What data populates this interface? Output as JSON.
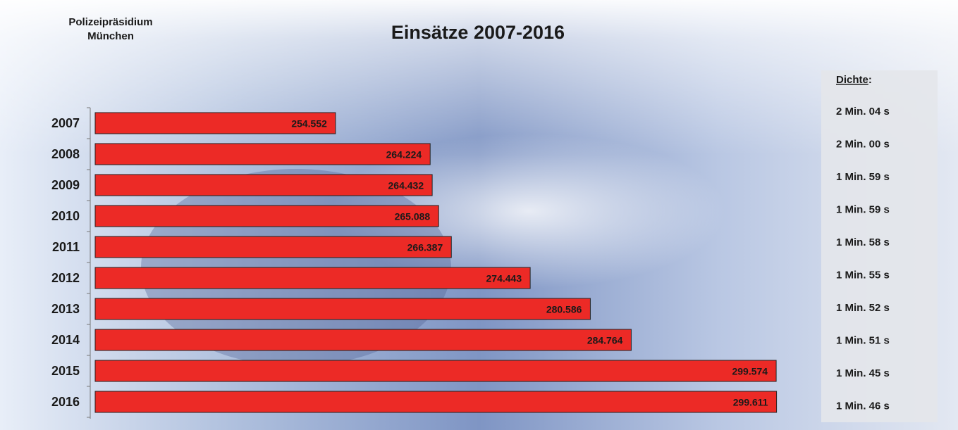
{
  "chart_data": {
    "type": "bar",
    "orientation": "horizontal",
    "title": "Einsätze 2007-2016",
    "subtitle": [
      "Polizeipräsidium",
      "München"
    ],
    "categories": [
      "2007",
      "2008",
      "2009",
      "2010",
      "2011",
      "2012",
      "2013",
      "2014",
      "2015",
      "2016"
    ],
    "values": [
      254552,
      264224,
      264432,
      265088,
      266387,
      274443,
      280586,
      284764,
      299574,
      299611
    ],
    "value_labels": [
      "254.552",
      "264.224",
      "264.432",
      "265.088",
      "266.387",
      "274.443",
      "280.586",
      "284.764",
      "299.574",
      "299.611"
    ],
    "color": "#ec2a26",
    "xlim": [
      230000,
      300000
    ],
    "density_label": "Dichte",
    "density_suffix": ":",
    "density": [
      "2 Min. 04 s",
      "2 Min. 00 s",
      "1 Min. 59 s",
      "1 Min. 59 s",
      "1 Min. 58 s",
      "1 Min. 55 s",
      "1 Min. 52 s",
      "1 Min. 51 s",
      "1 Min. 45 s",
      "1 Min. 46 s"
    ]
  }
}
